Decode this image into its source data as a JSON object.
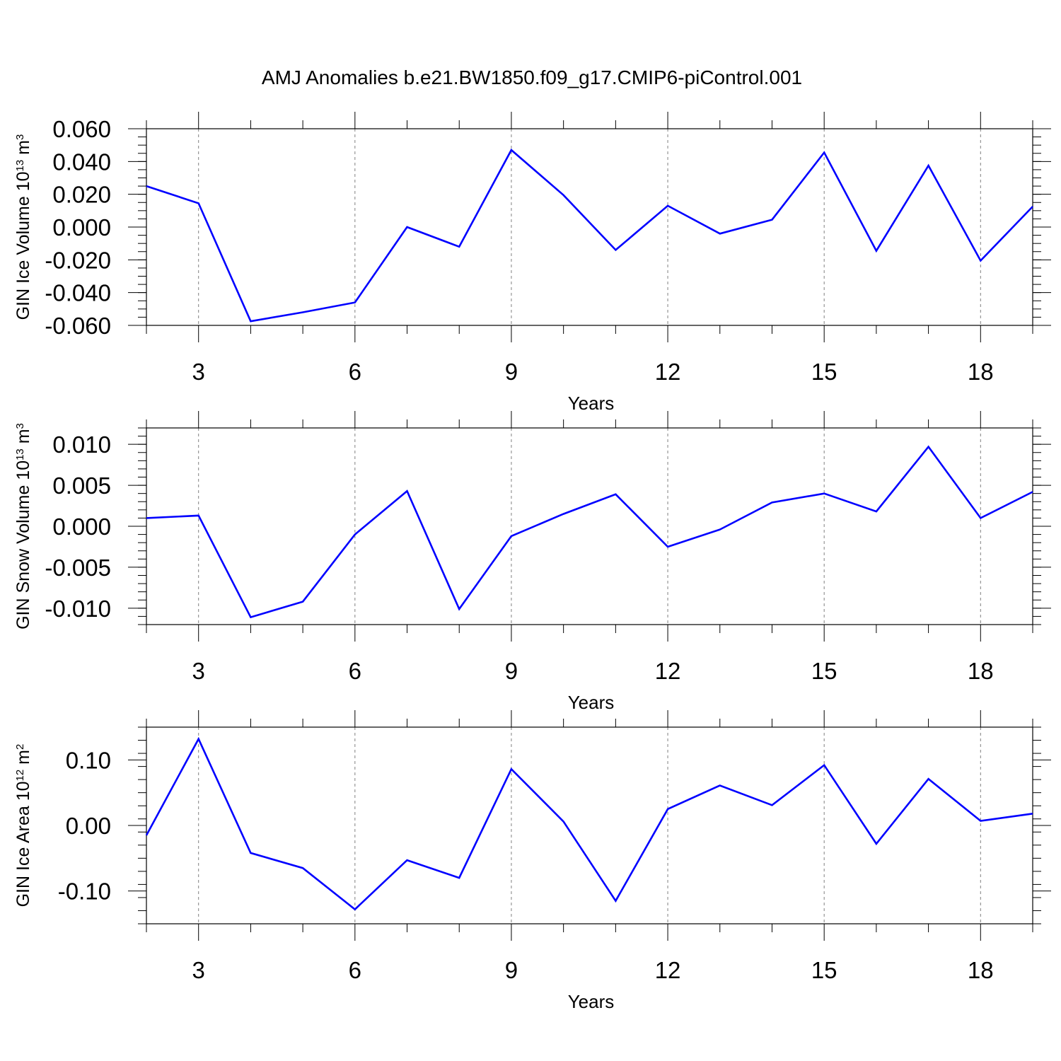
{
  "title": "AMJ Anomalies b.e21.BW1850.f09_g17.CMIP6-piControl.001",
  "colors": {
    "line": "#0000ff",
    "axis": "#000000",
    "grid": "#808080",
    "background": "#ffffff"
  },
  "chart_data": [
    {
      "type": "line",
      "ylabel": {
        "text": "GIN Ice Volume 10",
        "exp": "13",
        "unit": " m",
        "unit_exp": "3"
      },
      "xlabel": "Years",
      "xlim": [
        2,
        19
      ],
      "ylim": [
        -0.06,
        0.06
      ],
      "x_ticks": [
        3,
        6,
        9,
        12,
        15,
        18
      ],
      "x_tick_labels": [
        "3",
        "6",
        "9",
        "12",
        "15",
        "18"
      ],
      "y_ticks": [
        -0.06,
        -0.04,
        -0.02,
        0.0,
        0.02,
        0.04,
        0.06
      ],
      "y_tick_labels": [
        "-0.060",
        "-0.040",
        "-0.020",
        "0.000",
        "0.020",
        "0.040",
        "0.060"
      ],
      "y_minor_step": 0.005,
      "grid": "vertical dashed at major x ticks",
      "series": [
        {
          "x": [
            2,
            3,
            4,
            5,
            6,
            7,
            8,
            9,
            10,
            11,
            12,
            13,
            14,
            15,
            16,
            17,
            18,
            19
          ],
          "values": [
            0.025,
            0.0145,
            -0.0575,
            -0.052,
            -0.046,
            0.0,
            -0.012,
            0.047,
            0.0195,
            -0.014,
            0.013,
            -0.004,
            0.0045,
            0.0455,
            -0.0145,
            0.0375,
            -0.0205,
            0.0125
          ]
        }
      ]
    },
    {
      "type": "line",
      "ylabel": {
        "text": "GIN Snow Volume 10",
        "exp": "13",
        "unit": " m",
        "unit_exp": "3"
      },
      "xlabel": "Years",
      "xlim": [
        2,
        19
      ],
      "ylim": [
        -0.012,
        0.012
      ],
      "x_ticks": [
        3,
        6,
        9,
        12,
        15,
        18
      ],
      "x_tick_labels": [
        "3",
        "6",
        "9",
        "12",
        "15",
        "18"
      ],
      "y_ticks": [
        -0.01,
        -0.005,
        0.0,
        0.005,
        0.01
      ],
      "y_tick_labels": [
        "-0.010",
        "-0.005",
        "0.000",
        "0.005",
        "0.010"
      ],
      "y_minor_step": 0.001,
      "grid": "vertical dashed at major x ticks",
      "series": [
        {
          "x": [
            2,
            3,
            4,
            5,
            6,
            7,
            8,
            9,
            10,
            11,
            12,
            13,
            14,
            15,
            16,
            17,
            18,
            19
          ],
          "values": [
            0.001,
            0.0013,
            -0.0111,
            -0.0092,
            -0.001,
            0.0043,
            -0.0101,
            -0.0012,
            0.0015,
            0.0039,
            -0.0025,
            -0.0004,
            0.0029,
            0.004,
            0.0018,
            0.0097,
            0.001,
            0.0042
          ]
        }
      ]
    },
    {
      "type": "line",
      "ylabel": {
        "text": "GIN Ice Area 10",
        "exp": "12",
        "unit": " m",
        "unit_exp": "2"
      },
      "xlabel": "Years",
      "xlim": [
        2,
        19
      ],
      "ylim": [
        -0.15,
        0.15
      ],
      "x_ticks": [
        3,
        6,
        9,
        12,
        15,
        18
      ],
      "x_tick_labels": [
        "3",
        "6",
        "9",
        "12",
        "15",
        "18"
      ],
      "y_ticks": [
        -0.1,
        0.0,
        0.1
      ],
      "y_tick_labels": [
        "-0.10",
        "0.00",
        "0.10"
      ],
      "y_minor_step": 0.02,
      "grid": "vertical dashed at major x ticks",
      "series": [
        {
          "x": [
            2,
            3,
            4,
            5,
            6,
            7,
            8,
            9,
            10,
            11,
            12,
            13,
            14,
            15,
            16,
            17,
            18,
            19
          ],
          "values": [
            -0.015,
            0.132,
            -0.042,
            -0.065,
            -0.128,
            -0.053,
            -0.08,
            0.086,
            0.006,
            -0.115,
            0.025,
            0.061,
            0.031,
            0.092,
            -0.028,
            0.071,
            0.007,
            0.018
          ]
        }
      ]
    }
  ]
}
